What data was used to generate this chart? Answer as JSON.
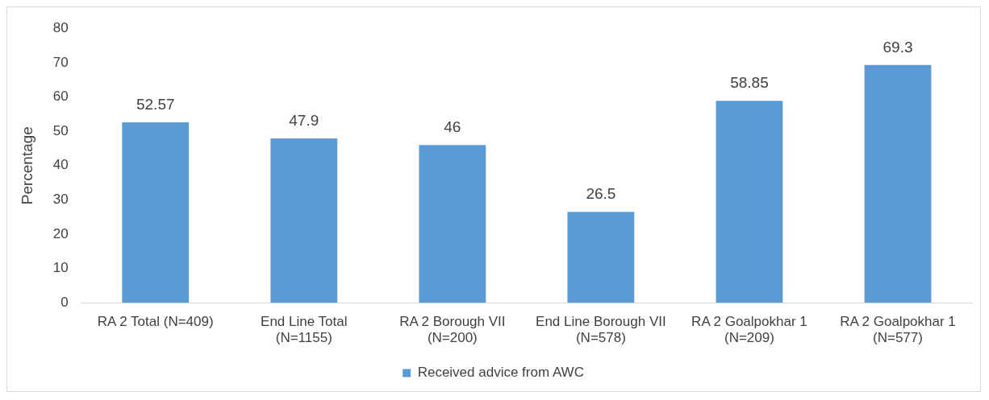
{
  "chart_data": {
    "type": "bar",
    "ylabel": "Percentage",
    "categories": [
      "RA 2 Total (N=409)",
      "End Line Total (N=1155)",
      "RA 2 Borough VII (N=200)",
      "End Line Borough VII (N=578)",
      "RA 2 Goalpokhar 1 (N=209)",
      "RA 2 Goalpokhar 1 (N=577)"
    ],
    "series": [
      {
        "name": "Received advice from AWC",
        "color": "#5b9bd5",
        "values": [
          52.57,
          47.9,
          46,
          26.5,
          58.85,
          69.3
        ]
      }
    ],
    "ylim": [
      0,
      80
    ],
    "yticks": [
      0,
      10,
      20,
      30,
      40,
      50,
      60,
      70,
      80
    ],
    "grid": false,
    "legend": "bottom",
    "data_labels": true
  }
}
